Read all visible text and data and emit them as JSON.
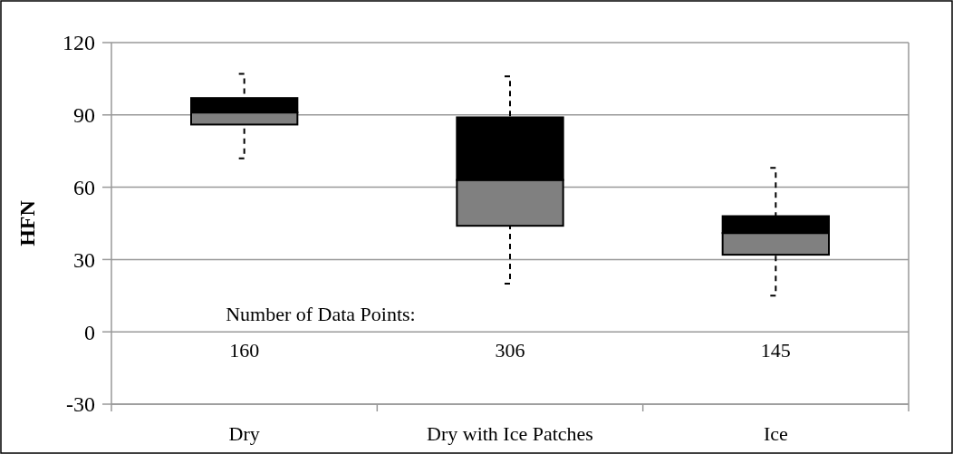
{
  "chart_data": {
    "type": "box",
    "ylabel": "HFN",
    "categories": [
      "Dry",
      "Dry with Ice Patches",
      "Ice"
    ],
    "boxes": [
      {
        "low": 72,
        "q1": 86,
        "median": 91,
        "q3": 97,
        "high": 107
      },
      {
        "low": 20,
        "q1": 44,
        "median": 63,
        "q3": 89,
        "high": 106
      },
      {
        "low": 15,
        "q1": 32,
        "median": 41,
        "q3": 48,
        "high": 68
      }
    ],
    "ylim": [
      -30,
      120
    ],
    "yticks": [
      -30,
      0,
      30,
      60,
      90,
      120
    ],
    "grid": "y",
    "line_style": "dashed",
    "annotations": [
      "Number of Data Points:",
      "160",
      "306",
      "145"
    ]
  }
}
